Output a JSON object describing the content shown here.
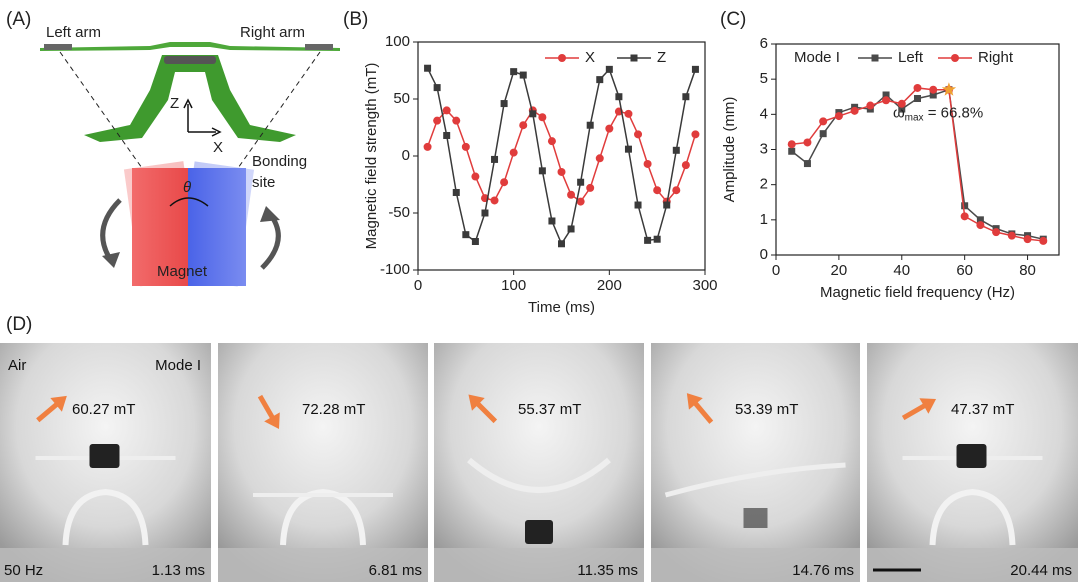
{
  "panel_labels": [
    "(A)",
    "(B)",
    "(C)",
    "(D)"
  ],
  "diagram": {
    "left_arm": "Left arm",
    "right_arm": "Right arm",
    "z_axis": "Z",
    "x_axis": "X",
    "bonding_site": "Bonding\nsite",
    "angle": "θ",
    "magnet": "Magnet"
  },
  "chart_data": [
    {
      "type": "line",
      "xlabel": "Time (ms)",
      "ylabel": "Magnetic field strength (mT)",
      "x": [
        10,
        20,
        30,
        40,
        50,
        60,
        70,
        80,
        90,
        100,
        110,
        120,
        130,
        140,
        150,
        160,
        170,
        180,
        190,
        200,
        210,
        220,
        230,
        240,
        250,
        260,
        270,
        280,
        290
      ],
      "series": [
        {
          "name": "X",
          "color": "#e03c3c",
          "marker": "circle",
          "values": [
            8,
            31,
            40,
            31,
            8,
            -18,
            -37,
            -39,
            -23,
            3,
            27,
            40,
            34,
            13,
            -14,
            -34,
            -40,
            -28,
            -2,
            24,
            39,
            37,
            19,
            -7,
            -30,
            -40,
            -30,
            -8,
            19
          ]
        },
        {
          "name": "Z",
          "color": "#3a3a3a",
          "marker": "square",
          "values": [
            77,
            60,
            18,
            -32,
            -69,
            -75,
            -50,
            -3,
            46,
            74,
            71,
            37,
            -13,
            -57,
            -77,
            -64,
            -23,
            27,
            67,
            76,
            52,
            6,
            -43,
            -74,
            -73,
            -43,
            5,
            52,
            76
          ]
        }
      ],
      "xlim": [
        0,
        300
      ],
      "xticks": [
        0,
        100,
        200,
        300
      ],
      "ylim": [
        -100,
        100
      ],
      "yticks": [
        -100,
        -50,
        0,
        50,
        100
      ]
    },
    {
      "type": "line",
      "xlabel": "Magnetic field frequency (Hz)",
      "ylabel": "Amplitude (mm)",
      "annotation": "Mode I",
      "x": [
        5,
        10,
        15,
        20,
        25,
        30,
        35,
        40,
        45,
        50,
        55,
        60,
        65,
        70,
        75,
        80,
        85
      ],
      "series": [
        {
          "name": "Left",
          "color": "#4a4a4a",
          "marker": "square",
          "values": [
            2.95,
            2.6,
            3.45,
            4.05,
            4.2,
            4.15,
            4.55,
            4.15,
            4.45,
            4.55,
            4.7,
            1.4,
            1.0,
            0.75,
            0.6,
            0.55,
            0.45
          ]
        },
        {
          "name": "Right",
          "color": "#e03c3c",
          "marker": "circle",
          "values": [
            3.15,
            3.2,
            3.8,
            3.95,
            4.1,
            4.25,
            4.4,
            4.3,
            4.75,
            4.7,
            4.7,
            1.1,
            0.85,
            0.65,
            0.55,
            0.45,
            0.4
          ]
        }
      ],
      "highlight": {
        "x": 55,
        "y": 4.7,
        "color": "#f0a030",
        "label": [
          "ω",
          "max",
          " = 66.8%"
        ]
      },
      "xlim": [
        0,
        90
      ],
      "xticks": [
        0,
        20,
        40,
        60,
        80
      ],
      "ylim": [
        0,
        6
      ],
      "yticks": [
        0,
        1,
        2,
        3,
        4,
        5,
        6
      ]
    }
  ],
  "photos": [
    {
      "field": "60.27 mT",
      "time": "1.13 ms",
      "medium": "Air",
      "mode": "Mode I",
      "frequency": "50 Hz"
    },
    {
      "field": "72.28 mT",
      "time": "6.81 ms"
    },
    {
      "field": "55.37 mT",
      "time": "11.35 ms"
    },
    {
      "field": "53.39 mT",
      "time": "14.76 ms"
    },
    {
      "field": "47.37 mT",
      "time": "20.44 ms"
    }
  ]
}
